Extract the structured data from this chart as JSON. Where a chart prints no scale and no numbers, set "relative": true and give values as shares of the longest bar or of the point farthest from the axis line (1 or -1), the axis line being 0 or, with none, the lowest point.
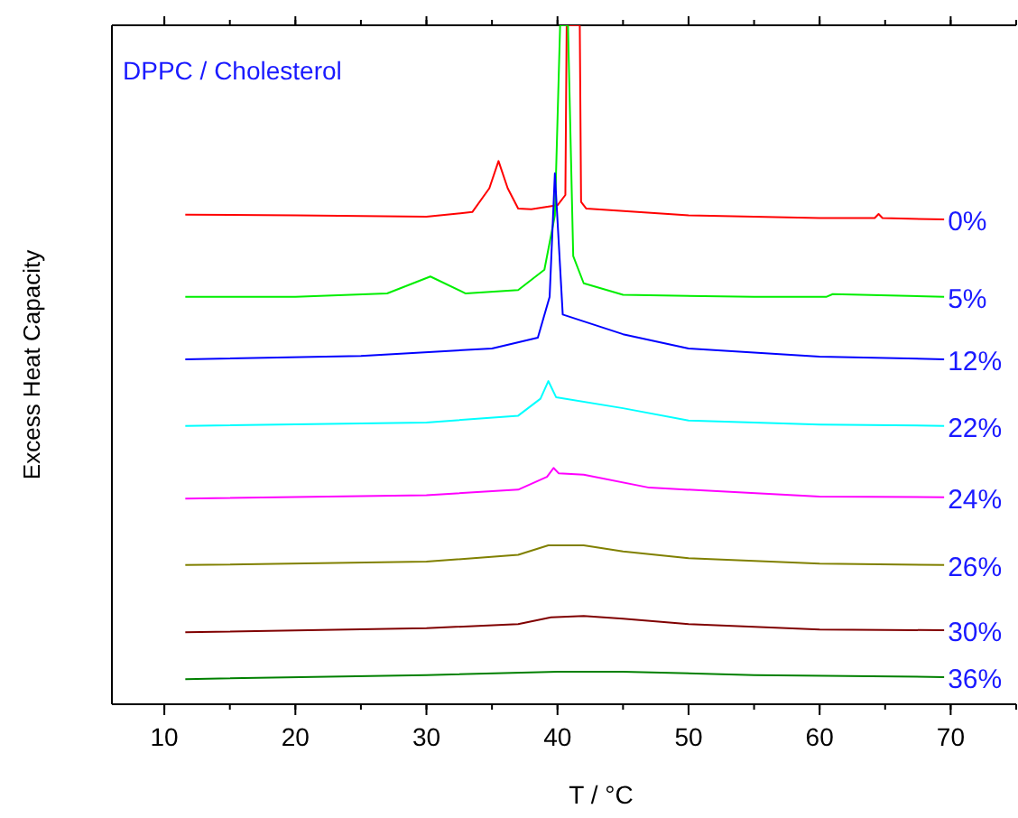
{
  "chart_data": {
    "type": "line",
    "relative": true,
    "title": "DPPC / Cholesterol",
    "xlabel": "T / °C",
    "ylabel": "Excess Heat Capacity",
    "xlim": [
      6,
      75
    ],
    "xticks": [
      10,
      20,
      30,
      40,
      50,
      60,
      70
    ],
    "grid": false,
    "marker": "none",
    "line_style": "solid",
    "series": [
      {
        "name": "0%",
        "color": "#ff0000",
        "x": [
          11.6,
          20,
          30,
          33.5,
          34.8,
          35.5,
          36.2,
          37,
          38,
          40,
          40.6,
          40.7,
          41.7,
          41.8,
          42.2,
          50,
          60,
          64.2,
          64.5,
          64.8,
          69.5
        ],
        "values": [
          0.721,
          0.72,
          0.718,
          0.725,
          0.76,
          0.8,
          0.76,
          0.73,
          0.729,
          0.735,
          0.75,
          1,
          1,
          0.74,
          0.73,
          0.72,
          0.716,
          0.716,
          0.722,
          0.716,
          0.714
        ]
      },
      {
        "name": "5%",
        "color": "#00ee00",
        "x": [
          11.6,
          20,
          27,
          30.3,
          33,
          37,
          39,
          39.8,
          40.2,
          40.8,
          41.2,
          42,
          45,
          55,
          60.5,
          61,
          69.5
        ],
        "values": [
          0.6,
          0.6,
          0.605,
          0.63,
          0.605,
          0.61,
          0.64,
          0.72,
          1,
          1,
          0.66,
          0.62,
          0.603,
          0.6,
          0.6,
          0.604,
          0.6
        ]
      },
      {
        "name": "12%",
        "color": "#0000ff",
        "x": [
          11.6,
          25,
          35,
          38.5,
          39.4,
          39.8,
          40.4,
          45,
          50,
          60,
          69.5
        ],
        "values": [
          0.508,
          0.513,
          0.524,
          0.54,
          0.6,
          0.782,
          0.574,
          0.545,
          0.524,
          0.512,
          0.508
        ]
      },
      {
        "name": "22%",
        "color": "#00ffff",
        "x": [
          11.6,
          30,
          37,
          38.7,
          39.3,
          39.9,
          45,
          50,
          60,
          69.5
        ],
        "values": [
          0.41,
          0.415,
          0.425,
          0.45,
          0.476,
          0.452,
          0.436,
          0.418,
          0.412,
          0.41
        ]
      },
      {
        "name": "24%",
        "color": "#ff00ff",
        "x": [
          11.6,
          30,
          37,
          39.2,
          39.7,
          40.1,
          42,
          47,
          60,
          69.5
        ],
        "values": [
          0.303,
          0.308,
          0.316,
          0.335,
          0.348,
          0.34,
          0.338,
          0.319,
          0.306,
          0.305
        ]
      },
      {
        "name": "26%",
        "color": "#808000",
        "x": [
          11.6,
          30,
          37,
          39.3,
          42,
          45,
          50,
          60,
          69.5
        ],
        "values": [
          0.205,
          0.21,
          0.22,
          0.234,
          0.234,
          0.225,
          0.215,
          0.207,
          0.205
        ]
      },
      {
        "name": "30%",
        "color": "#800000",
        "x": [
          11.6,
          30,
          37,
          39.5,
          42,
          45,
          50,
          60,
          69.5
        ],
        "values": [
          0.106,
          0.112,
          0.118,
          0.128,
          0.13,
          0.126,
          0.118,
          0.11,
          0.109
        ]
      },
      {
        "name": "36%",
        "color": "#008000",
        "x": [
          11.6,
          30,
          40,
          45,
          55,
          69.5
        ],
        "values": [
          0.037,
          0.043,
          0.048,
          0.048,
          0.043,
          0.04
        ]
      }
    ]
  }
}
